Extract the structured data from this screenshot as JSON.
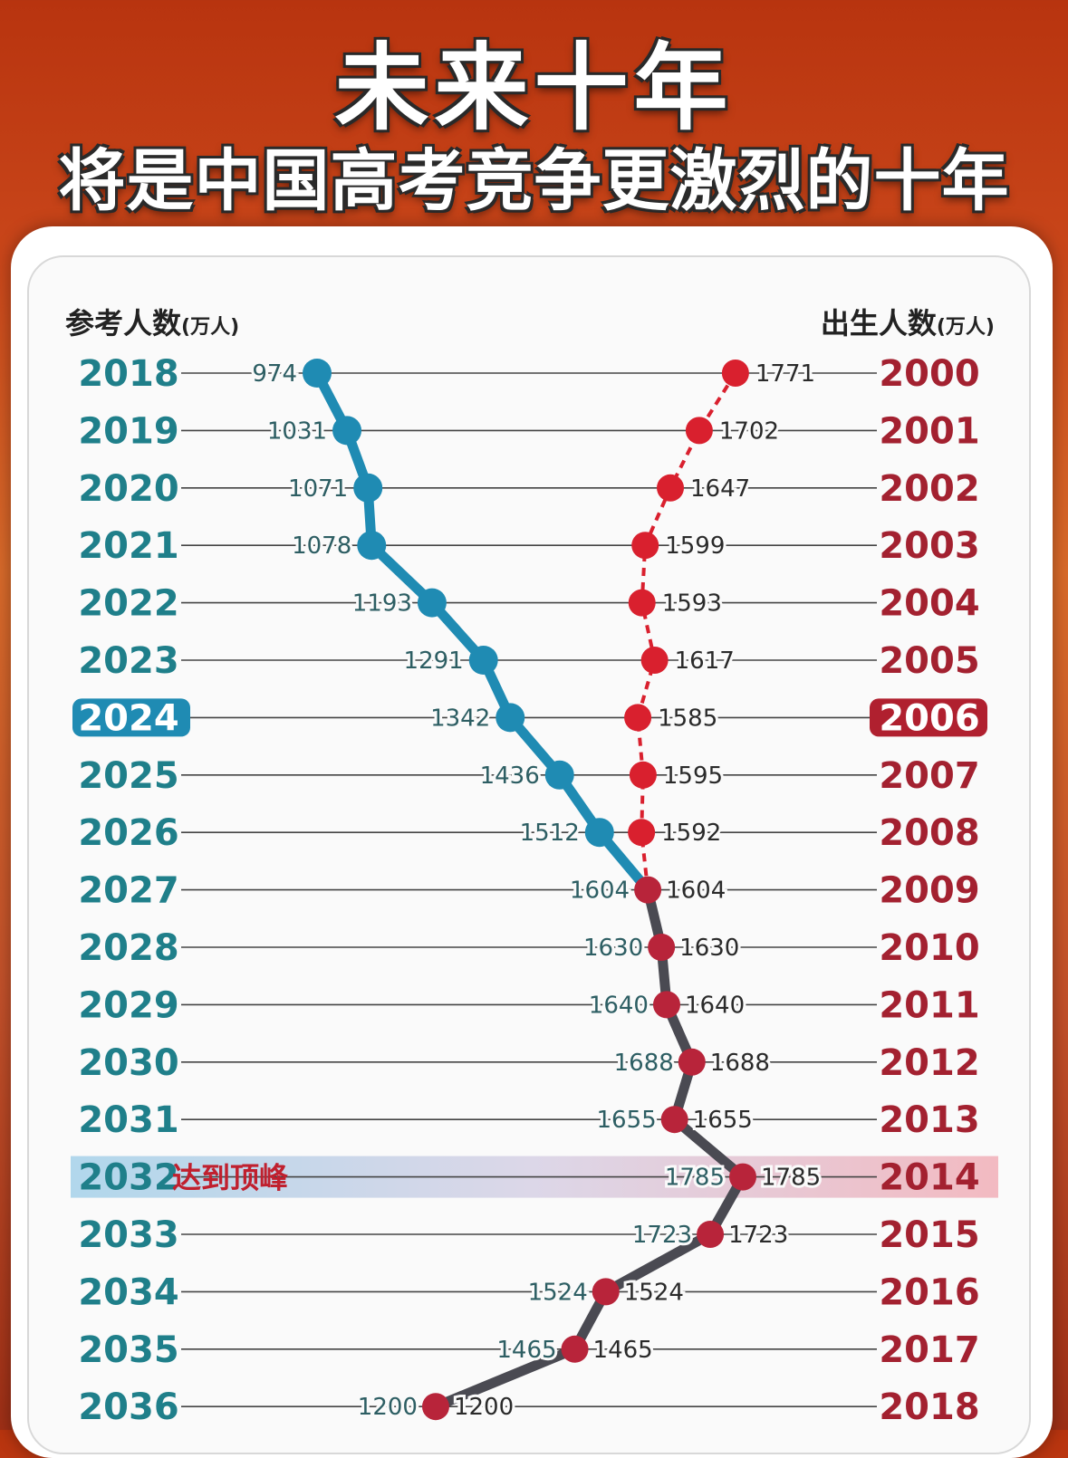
{
  "header": {
    "title": "未来十年",
    "subtitle": "将是中国高考竞争更激烈的十年"
  },
  "chart_data": {
    "type": "line",
    "left_axis_label": "参考人数",
    "left_axis_unit": "(万人)",
    "right_axis_label": "出生人数",
    "right_axis_unit": "(万人)",
    "exam_years": [
      2018,
      2019,
      2020,
      2021,
      2022,
      2023,
      2024,
      2025,
      2026,
      2027,
      2028,
      2029,
      2030,
      2031,
      2032,
      2033,
      2034,
      2035,
      2036
    ],
    "birth_years": [
      2000,
      2001,
      2002,
      2003,
      2004,
      2005,
      2006,
      2007,
      2008,
      2009,
      2010,
      2011,
      2012,
      2013,
      2014,
      2015,
      2016,
      2017,
      2018
    ],
    "series": [
      {
        "name": "参考人数",
        "values": [
          974,
          1031,
          1071,
          1078,
          1193,
          1291,
          1342,
          1436,
          1512,
          1604,
          1630,
          1640,
          1688,
          1655,
          1785,
          1723,
          1524,
          1465,
          1200
        ],
        "color": "#1f8bb3",
        "style": "solid"
      },
      {
        "name": "出生人数",
        "values": [
          1771,
          1702,
          1647,
          1599,
          1593,
          1617,
          1585,
          1595,
          1592,
          1604,
          1630,
          1640,
          1688,
          1655,
          1785,
          1723,
          1524,
          1465,
          1200
        ],
        "color": "#d9202e",
        "style": "dashed"
      }
    ],
    "merged_color": "#4a4a52",
    "merged_from_index": 9,
    "highlight_current_index": 6,
    "peak_index": 14,
    "peak_annotation": "达到顶峰",
    "colors": {
      "left_year": "#1f7f8a",
      "right_year": "#a32130",
      "grid_line": "#444444"
    }
  }
}
